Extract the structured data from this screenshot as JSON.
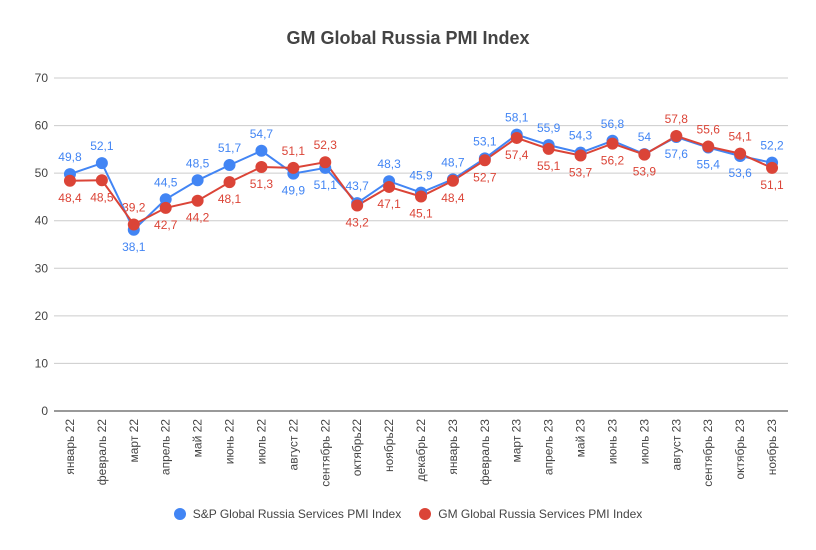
{
  "chart_data": {
    "type": "line",
    "title": "GM Global Russia PMI Index",
    "categories": [
      "январь 22",
      "февраль 22",
      "март 22",
      "апрель 22",
      "май 22",
      "июнь 22",
      "июль 22",
      "август 22",
      "сентябрь 22",
      "октябрь22",
      "ноябрь22",
      "декабрь 22",
      "январь 23",
      "февраль 23",
      "март 23",
      "апрель 23",
      "май 23",
      "июнь 23",
      "июль 23",
      "август 23",
      "сентябрь 23",
      "октябрь 23",
      "ноябрь 23"
    ],
    "ylim": [
      0,
      70
    ],
    "yticks": [
      "0",
      "10",
      "20",
      "30",
      "40",
      "50",
      "60",
      "70"
    ],
    "grid": true,
    "legend_position": "bottom",
    "series": [
      {
        "name": "S&P Global Russia Services PMI Index",
        "color": "#4285f4",
        "values": [
          49.8,
          52.1,
          38.1,
          44.5,
          48.5,
          51.7,
          54.7,
          49.9,
          51.1,
          43.7,
          48.3,
          45.9,
          48.7,
          53.1,
          58.1,
          55.9,
          54.3,
          56.8,
          54,
          57.6,
          55.4,
          53.6,
          52.2
        ],
        "labels": [
          "49,8",
          "52,1",
          "38,1",
          "44,5",
          "48,5",
          "51,7",
          "54,7",
          "49,9",
          "51,1",
          "43,7",
          "48,3",
          "45,9",
          "48,7",
          "53,1",
          "58,1",
          "55,9",
          "54,3",
          "56,8",
          "54",
          "57,6",
          "55,4",
          "53,6",
          "52,2"
        ]
      },
      {
        "name": "GM Global Russia Services PMI Index",
        "color": "#db4437",
        "values": [
          48.4,
          48.5,
          39.2,
          42.7,
          44.2,
          48.1,
          51.3,
          51.1,
          52.3,
          43.2,
          47.1,
          45.1,
          48.4,
          52.7,
          57.4,
          55.1,
          53.7,
          56.2,
          53.9,
          57.8,
          55.6,
          54.1,
          51.1
        ],
        "labels": [
          "48,4",
          "48,5",
          "39,2",
          "42,7",
          "44,2",
          "48,1",
          "51,3",
          "51,1",
          "52,3",
          "43,2",
          "47,1",
          "45,1",
          "48,4",
          "52,7",
          "57,4",
          "55,1",
          "53,7",
          "56,2",
          "53,9",
          "57,8",
          "55,6",
          "54,1",
          "51,1"
        ]
      }
    ]
  }
}
